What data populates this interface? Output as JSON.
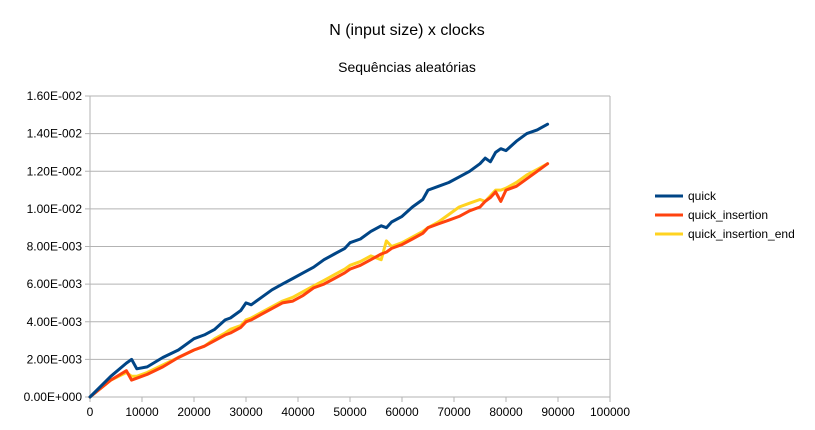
{
  "chart_data": {
    "type": "line",
    "title": "N (input size) x clocks",
    "subtitle": "Sequências aleatórias",
    "xlabel": "",
    "ylabel": "",
    "xlim": [
      0,
      100000
    ],
    "ylim": [
      0,
      0.016
    ],
    "x_ticks": [
      0,
      10000,
      20000,
      30000,
      40000,
      50000,
      60000,
      70000,
      80000,
      90000,
      100000
    ],
    "x_tick_labels": [
      "0",
      "10000",
      "20000",
      "30000",
      "40000",
      "50000",
      "60000",
      "70000",
      "80000",
      "90000",
      "100000"
    ],
    "y_ticks": [
      0,
      0.002,
      0.004,
      0.006,
      0.008,
      0.01,
      0.012,
      0.014,
      0.016
    ],
    "y_tick_labels": [
      "0.00E+000",
      "2.00E-003",
      "4.00E-003",
      "6.00E-003",
      "8.00E-003",
      "1.00E-002",
      "1.20E-002",
      "1.40E-002",
      "1.60E-002"
    ],
    "grid": true,
    "legend_position": "right",
    "x": [
      0,
      4000,
      7000,
      8000,
      9000,
      11000,
      14000,
      17000,
      20000,
      22000,
      24000,
      26000,
      27000,
      29000,
      30000,
      31000,
      33000,
      35000,
      37000,
      39000,
      41000,
      43000,
      45000,
      47000,
      49000,
      50000,
      52000,
      54000,
      56000,
      57000,
      58000,
      60000,
      62000,
      64000,
      65000,
      67000,
      69000,
      71000,
      73000,
      75000,
      76000,
      77000,
      78000,
      79000,
      80000,
      82000,
      84000,
      86000,
      88000
    ],
    "series": [
      {
        "name": "quick",
        "color": "#004586",
        "values": [
          0.0,
          0.0011,
          0.0018,
          0.002,
          0.0015,
          0.0016,
          0.0021,
          0.0025,
          0.0031,
          0.0033,
          0.0036,
          0.0041,
          0.0042,
          0.0046,
          0.005,
          0.0049,
          0.0053,
          0.0057,
          0.006,
          0.0063,
          0.0066,
          0.0069,
          0.0073,
          0.0076,
          0.0079,
          0.0082,
          0.0084,
          0.0088,
          0.0091,
          0.009,
          0.0093,
          0.0096,
          0.0101,
          0.0105,
          0.011,
          0.0112,
          0.0114,
          0.0117,
          0.012,
          0.0124,
          0.0127,
          0.0125,
          0.013,
          0.0132,
          0.0131,
          0.0136,
          0.014,
          0.0142,
          0.0145
        ]
      },
      {
        "name": "quick_insertion",
        "color": "#ff420e",
        "values": [
          0.0,
          0.0009,
          0.0014,
          0.0009,
          0.001,
          0.0012,
          0.0016,
          0.0021,
          0.0025,
          0.0027,
          0.003,
          0.0033,
          0.0034,
          0.0037,
          0.004,
          0.0041,
          0.0044,
          0.0047,
          0.005,
          0.0051,
          0.0054,
          0.0058,
          0.006,
          0.0063,
          0.0066,
          0.0068,
          0.007,
          0.0073,
          0.0076,
          0.0077,
          0.0079,
          0.0081,
          0.0084,
          0.0087,
          0.009,
          0.0092,
          0.0094,
          0.0096,
          0.0099,
          0.0101,
          0.0104,
          0.0106,
          0.0109,
          0.0104,
          0.011,
          0.0112,
          0.0116,
          0.012,
          0.0124
        ]
      },
      {
        "name": "quick_insertion_end",
        "color": "#ffd320",
        "values": [
          0.0,
          0.0009,
          0.0013,
          0.0011,
          0.0011,
          0.0013,
          0.0017,
          0.0021,
          0.0025,
          0.0027,
          0.0031,
          0.0034,
          0.0036,
          0.0038,
          0.0041,
          0.0042,
          0.0045,
          0.0048,
          0.0051,
          0.0053,
          0.0056,
          0.0059,
          0.0062,
          0.0065,
          0.0068,
          0.007,
          0.0072,
          0.0075,
          0.0073,
          0.0083,
          0.008,
          0.0082,
          0.0085,
          0.0088,
          0.009,
          0.0093,
          0.0097,
          0.0101,
          0.0103,
          0.0105,
          0.0104,
          0.0107,
          0.011,
          0.011,
          0.0111,
          0.0114,
          0.0118,
          0.0121,
          0.0124
        ]
      }
    ]
  }
}
